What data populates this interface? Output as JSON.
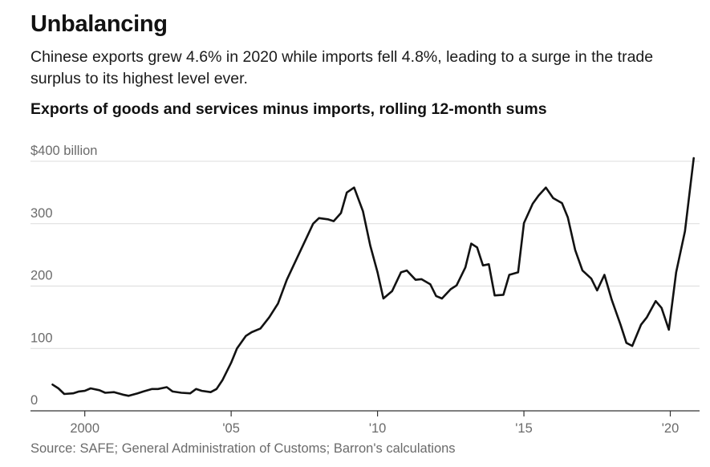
{
  "header": {
    "title": "Unbalancing",
    "subtitle": "Chinese exports grew 4.6% in 2020 while imports fell 4.8%, leading to a surge in the trade surplus to its highest level ever.",
    "chart_heading": "Exports of goods and services minus imports, rolling 12-month sums"
  },
  "footer": {
    "source": "Source: SAFE; General Administration of Customs; Barron's calculations"
  },
  "chart_data": {
    "type": "line",
    "title": "Exports of goods and services minus imports, rolling 12-month sums",
    "xlabel": "",
    "ylabel": "",
    "xlim": [
      1998.2,
      2021.0
    ],
    "ylim": [
      0,
      400
    ],
    "grid": true,
    "y_ticks": [
      {
        "value": 400,
        "label": "$400 billion"
      },
      {
        "value": 300,
        "label": "300"
      },
      {
        "value": 200,
        "label": "200"
      },
      {
        "value": 100,
        "label": "100"
      },
      {
        "value": 0,
        "label": "0"
      }
    ],
    "x_ticks": [
      {
        "value": 2000,
        "label": "2000"
      },
      {
        "value": 2005,
        "label": "'05"
      },
      {
        "value": 2010,
        "label": "'10"
      },
      {
        "value": 2015,
        "label": "'15"
      },
      {
        "value": 2020,
        "label": "'20"
      }
    ],
    "line_color": "#121212",
    "series": [
      {
        "x": [
          1998.9,
          1999.1,
          1999.3,
          1999.6,
          1999.8,
          2000.0,
          2000.2,
          2000.5,
          2000.7,
          2001.0,
          2001.3,
          2001.5,
          2001.8,
          2002.0,
          2002.3,
          2002.5,
          2002.8,
          2003.0,
          2003.3,
          2003.6,
          2003.8,
          2004.0,
          2004.3,
          2004.5,
          2004.7,
          2005.0,
          2005.2,
          2005.5,
          2005.7,
          2006.0,
          2006.3,
          2006.6,
          2006.9,
          2007.2,
          2007.5,
          2007.8,
          2008.0,
          2008.3,
          2008.5,
          2008.75,
          2008.95,
          2009.2,
          2009.5,
          2009.75,
          2010.0,
          2010.2,
          2010.5,
          2010.8,
          2011.0,
          2011.3,
          2011.5,
          2011.8,
          2012.0,
          2012.2,
          2012.5,
          2012.7,
          2013.0,
          2013.2,
          2013.4,
          2013.6,
          2013.8,
          2014.0,
          2014.3,
          2014.5,
          2014.8,
          2015.0,
          2015.3,
          2015.5,
          2015.75,
          2016.0,
          2016.3,
          2016.5,
          2016.75,
          2017.0,
          2017.3,
          2017.5,
          2017.75,
          2018.0,
          2018.3,
          2018.5,
          2018.7,
          2019.0,
          2019.2,
          2019.5,
          2019.7,
          2019.95,
          2020.2,
          2020.5,
          2020.8
        ],
        "values": [
          42,
          36,
          27,
          28,
          31,
          32,
          36,
          33,
          29,
          30,
          26,
          24,
          28,
          31,
          35,
          35,
          38,
          31,
          29,
          28,
          35,
          32,
          30,
          35,
          49,
          77,
          100,
          120,
          126,
          132,
          150,
          172,
          210,
          240,
          270,
          300,
          309,
          307,
          304,
          317,
          350,
          358,
          320,
          265,
          222,
          180,
          192,
          222,
          225,
          210,
          211,
          203,
          184,
          180,
          195,
          201,
          230,
          268,
          262,
          233,
          235,
          185,
          186,
          218,
          222,
          301,
          332,
          345,
          358,
          341,
          333,
          310,
          258,
          225,
          212,
          193,
          218,
          178,
          138,
          109,
          104,
          138,
          150,
          176,
          165,
          130,
          222,
          288,
          405
        ]
      }
    ]
  }
}
